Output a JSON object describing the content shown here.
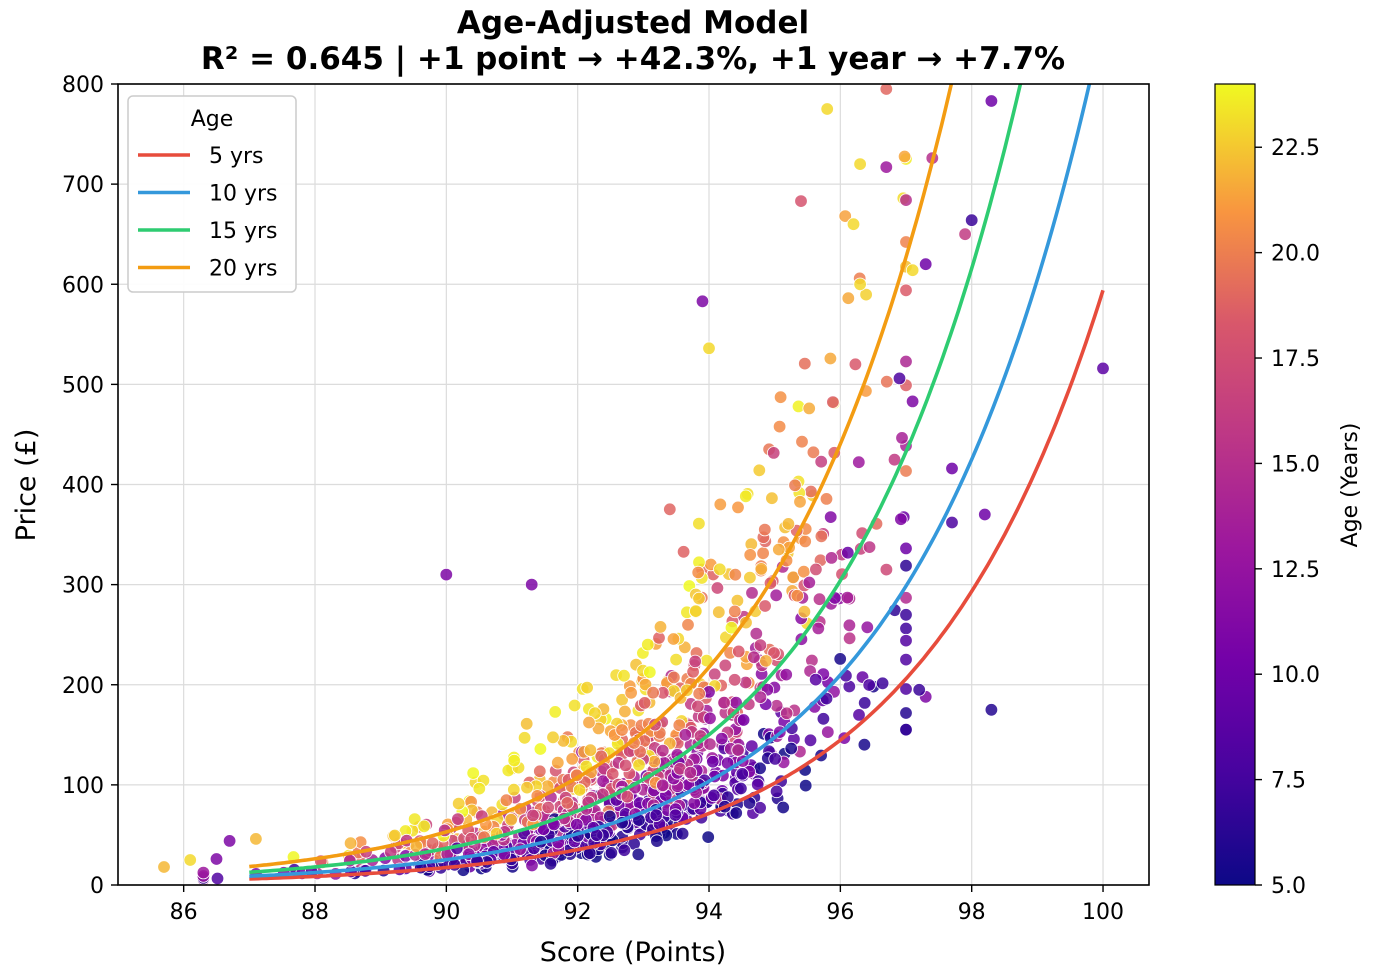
{
  "chart_data": {
    "type": "scatter",
    "title_line1": "Age-Adjusted Model",
    "title_line2": "R² = 0.645 | +1 point → +42.3%, +1 year → +7.7%",
    "xlabel": "Score (Points)",
    "ylabel": "Price (£)",
    "xlim": [
      85,
      100.7
    ],
    "ylim": [
      0,
      800
    ],
    "x_ticks": [
      "86",
      "88",
      "90",
      "92",
      "94",
      "96",
      "98",
      "100"
    ],
    "y_ticks": [
      "0",
      "100",
      "200",
      "300",
      "400",
      "500",
      "600",
      "700",
      "800"
    ],
    "grid": true,
    "colorbar": {
      "label": "Age (Years)",
      "range": [
        5,
        24
      ],
      "ticks": [
        "5.0",
        "7.5",
        "10.0",
        "12.5",
        "15.0",
        "17.5",
        "20.0",
        "22.5"
      ],
      "colormap": "plasma"
    },
    "legend": {
      "title": "Age",
      "position": "top-left",
      "entries": [
        {
          "label": "5 yrs",
          "color": "#e74c3c"
        },
        {
          "label": "10 yrs",
          "color": "#3498db"
        },
        {
          "label": "15 yrs",
          "color": "#2ecc71"
        },
        {
          "label": "20 yrs",
          "color": "#f39c12"
        }
      ]
    },
    "series": [
      {
        "name": "5 yrs",
        "age": 5,
        "color": "#e74c3c",
        "x_range": [
          87,
          100
        ],
        "curve_points": [
          [
            87,
            6
          ],
          [
            90,
            17
          ],
          [
            92,
            35
          ],
          [
            94,
            72
          ],
          [
            96,
            147
          ],
          [
            98,
            298
          ],
          [
            100,
            594
          ]
        ]
      },
      {
        "name": "10 yrs",
        "age": 10,
        "color": "#3498db",
        "x_range": [
          87,
          99.8
        ],
        "curve_points": [
          [
            87,
            9
          ],
          [
            90,
            25
          ],
          [
            92,
            50
          ],
          [
            94,
            103
          ],
          [
            96,
            210
          ],
          [
            98,
            425
          ],
          [
            99.8,
            800
          ]
        ]
      },
      {
        "name": "15 yrs",
        "age": 15,
        "color": "#2ecc71",
        "x_range": [
          87,
          98.8
        ],
        "curve_points": [
          [
            87,
            13
          ],
          [
            90,
            35
          ],
          [
            92,
            72
          ],
          [
            94,
            147
          ],
          [
            96,
            298
          ],
          [
            98,
            608
          ],
          [
            98.8,
            800
          ]
        ]
      },
      {
        "name": "20 yrs",
        "age": 20,
        "color": "#f39c12",
        "x_range": [
          87,
          97.7
        ],
        "curve_points": [
          [
            87,
            18
          ],
          [
            90,
            50
          ],
          [
            92,
            103
          ],
          [
            94,
            210
          ],
          [
            96,
            425
          ],
          [
            97.7,
            800
          ]
        ]
      }
    ],
    "highlighted_points": [
      {
        "x": 85.7,
        "y": 18,
        "age": 22
      },
      {
        "x": 86.1,
        "y": 25,
        "age": 23
      },
      {
        "x": 86.5,
        "y": 26,
        "age": 11
      },
      {
        "x": 86.7,
        "y": 44,
        "age": 11
      },
      {
        "x": 87.1,
        "y": 46,
        "age": 22
      },
      {
        "x": 90.0,
        "y": 310,
        "age": 11
      },
      {
        "x": 91.3,
        "y": 300,
        "age": 11
      },
      {
        "x": 93.9,
        "y": 583,
        "age": 11
      },
      {
        "x": 94.0,
        "y": 536,
        "age": 23
      },
      {
        "x": 95.4,
        "y": 683,
        "age": 18
      },
      {
        "x": 95.8,
        "y": 775,
        "age": 23
      },
      {
        "x": 96.2,
        "y": 660,
        "age": 23
      },
      {
        "x": 96.3,
        "y": 720,
        "age": 23
      },
      {
        "x": 96.3,
        "y": 600,
        "age": 23
      },
      {
        "x": 96.7,
        "y": 795,
        "age": 19
      },
      {
        "x": 96.7,
        "y": 717,
        "age": 13
      },
      {
        "x": 97.0,
        "y": 684,
        "age": 15
      },
      {
        "x": 97.1,
        "y": 614,
        "age": 23
      },
      {
        "x": 97.4,
        "y": 726,
        "age": 15
      },
      {
        "x": 97.3,
        "y": 620,
        "age": 10
      },
      {
        "x": 97.9,
        "y": 650,
        "age": 16
      },
      {
        "x": 98.0,
        "y": 664,
        "age": 7
      },
      {
        "x": 98.3,
        "y": 783,
        "age": 10
      },
      {
        "x": 98.3,
        "y": 175,
        "age": 6
      },
      {
        "x": 98.2,
        "y": 370,
        "age": 10
      },
      {
        "x": 100.0,
        "y": 516,
        "age": 9
      },
      {
        "x": 96.9,
        "y": 506,
        "age": 8
      },
      {
        "x": 97.1,
        "y": 483,
        "age": 11
      },
      {
        "x": 97.7,
        "y": 416,
        "age": 10
      },
      {
        "x": 97.7,
        "y": 362,
        "age": 8
      },
      {
        "x": 97.3,
        "y": 188,
        "age": 11
      },
      {
        "x": 97.2,
        "y": 195,
        "age": 7
      }
    ],
    "cloud_description_params": {
      "n_points": 1100,
      "score_center": 92.8,
      "score_sd": 2.0,
      "age_range": [
        5,
        24
      ]
    }
  }
}
